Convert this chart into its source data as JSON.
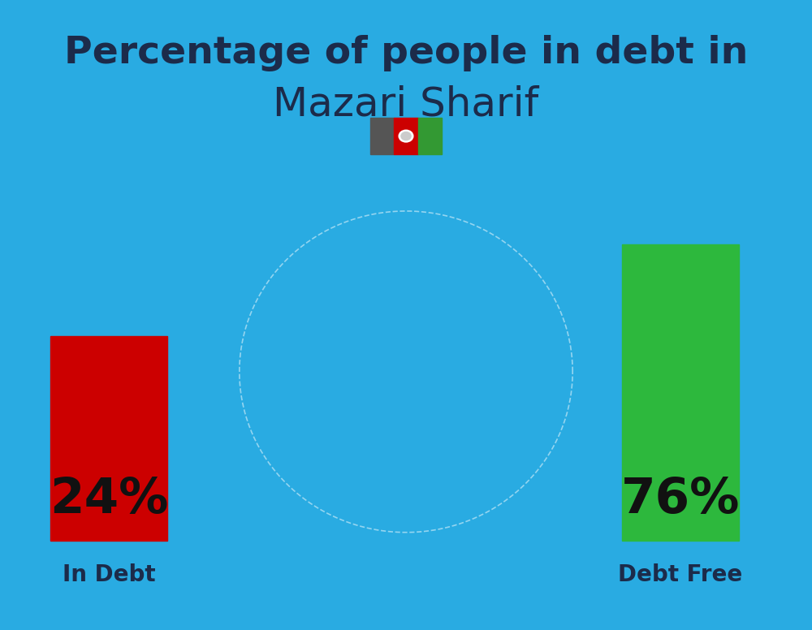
{
  "background_color": "#29ABE2",
  "title_line1": "Percentage of people in debt in",
  "title_line2": "Mazari Sharif",
  "title1_color": "#1C2B4A",
  "title2_color": "#1C2B4A",
  "title_fontsize1": 34,
  "title_fontsize2": 36,
  "bar_in_debt_pct": "24%",
  "bar_debt_free_pct": "76%",
  "bar_in_debt_color": "#CC0000",
  "bar_debt_free_color": "#2DB83D",
  "bar_label_color": "#111111",
  "bar_label_fontsize": 44,
  "label_in_debt": "In Debt",
  "label_debt_free": "Debt Free",
  "label_fontsize": 20,
  "label_color": "#1C2B4A",
  "flag_black": "#555555",
  "flag_red": "#CC0000",
  "flag_green": "#339933",
  "flag_emblem_outer": "#FFFFFF",
  "flag_emblem_inner": "#CCCCCC"
}
